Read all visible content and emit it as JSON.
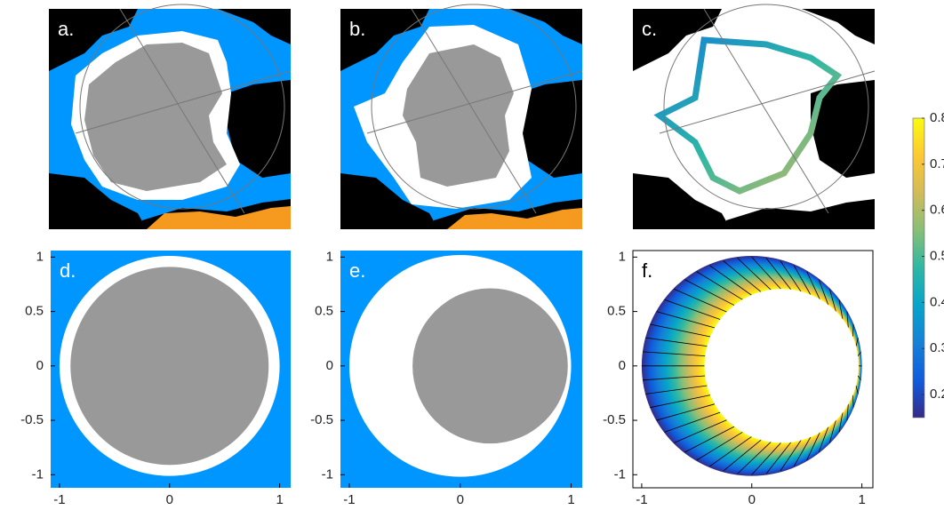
{
  "panels": [
    {
      "label": "a."
    },
    {
      "label": "b."
    },
    {
      "label": "c."
    },
    {
      "type": "circles",
      "label": "d.",
      "xlim": [
        -1.08,
        1.1
      ],
      "ylim": [
        -1.12,
        1.06
      ],
      "xticks": [
        -1,
        0,
        1
      ],
      "yticks": [
        -1,
        -0.5,
        0,
        0.5,
        1
      ],
      "background": "#0096ff",
      "shapes": [
        {
          "cx": 0,
          "cy": 0,
          "r": 1,
          "color": "#ffffff"
        },
        {
          "cx": 0,
          "cy": 0,
          "r": 0.9,
          "color": "#999999"
        }
      ]
    },
    {
      "type": "circles",
      "label": "e.",
      "xlim": [
        -1.08,
        1.1
      ],
      "ylim": [
        -1.12,
        1.06
      ],
      "xticks": [
        -1,
        0,
        1
      ],
      "yticks": [
        -1,
        -0.5,
        0,
        0.5,
        1
      ],
      "background": "#0096ff",
      "shapes": [
        {
          "cx": 0,
          "cy": 0,
          "r": 1,
          "color": "#ffffff"
        },
        {
          "cx": 0.27,
          "cy": 0,
          "r": 0.7,
          "color": "#999999"
        }
      ]
    },
    {
      "type": "ring",
      "label": "f.",
      "xlim": [
        -1.08,
        1.1
      ],
      "ylim": [
        -1.12,
        1.06
      ],
      "xticks": [
        -1,
        0,
        1
      ],
      "yticks": [
        -1,
        -0.5,
        0,
        0.5,
        1
      ],
      "background": "#ffffff",
      "shapes": [
        {
          "cx": 0,
          "cy": 0,
          "r": 1
        },
        {
          "cx": 0.27,
          "cy": 0,
          "r": 0.7,
          "color": "#ffffff"
        }
      ]
    }
  ],
  "colorbar": {
    "clim": [
      0.15,
      0.8
    ],
    "ticks": [
      0.2,
      0.3,
      0.4,
      0.5,
      0.6,
      0.7,
      0.8
    ],
    "colors": [
      "#352a87",
      "#0f5cdd",
      "#1481d6",
      "#06a4ca",
      "#2eb7a4",
      "#87bf77",
      "#d1bb59",
      "#fec832",
      "#f9fb0e"
    ]
  }
}
